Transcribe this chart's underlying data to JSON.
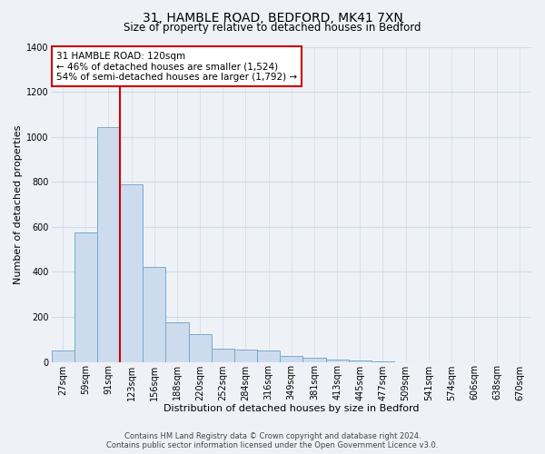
{
  "title_line1": "31, HAMBLE ROAD, BEDFORD, MK41 7XN",
  "title_line2": "Size of property relative to detached houses in Bedford",
  "xlabel": "Distribution of detached houses by size in Bedford",
  "ylabel": "Number of detached properties",
  "bar_color": "#ccdcee",
  "bar_edge_color": "#7aa8cc",
  "categories": [
    "27sqm",
    "59sqm",
    "91sqm",
    "123sqm",
    "156sqm",
    "188sqm",
    "220sqm",
    "252sqm",
    "284sqm",
    "316sqm",
    "349sqm",
    "381sqm",
    "413sqm",
    "445sqm",
    "477sqm",
    "509sqm",
    "541sqm",
    "574sqm",
    "606sqm",
    "638sqm",
    "670sqm"
  ],
  "values": [
    50,
    575,
    1042,
    790,
    420,
    175,
    125,
    60,
    55,
    50,
    25,
    20,
    12,
    5,
    2,
    0,
    0,
    0,
    0,
    0,
    0
  ],
  "ylim": [
    0,
    1400
  ],
  "yticks": [
    0,
    200,
    400,
    600,
    800,
    1000,
    1200,
    1400
  ],
  "property_line_label": "31 HAMBLE ROAD: 120sqm",
  "annotation_line1": "← 46% of detached houses are smaller (1,524)",
  "annotation_line2": "54% of semi-detached houses are larger (1,792) →",
  "box_color": "#ffffff",
  "box_edge_color": "#cc0000",
  "vline_color": "#cc0000",
  "footer_line1": "Contains HM Land Registry data © Crown copyright and database right 2024.",
  "footer_line2": "Contains public sector information licensed under the Open Government Licence v3.0.",
  "background_color": "#eef2f7",
  "grid_color": "#d0dae8",
  "title_fontsize": 10,
  "subtitle_fontsize": 8.5,
  "xlabel_fontsize": 8,
  "ylabel_fontsize": 8,
  "tick_fontsize": 7,
  "footer_fontsize": 6
}
